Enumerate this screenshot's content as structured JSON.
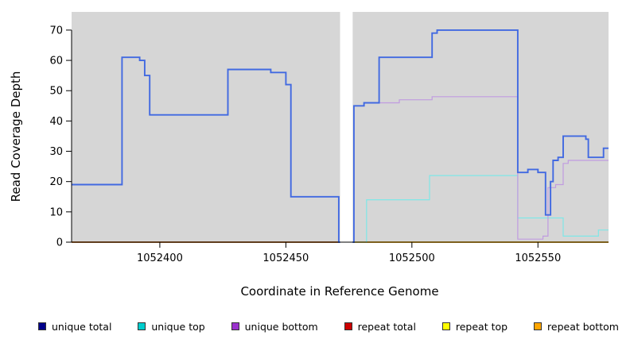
{
  "chart_data": {
    "type": "line",
    "subtype": "step-coverage",
    "title": "",
    "xlabel": "Coordinate in Reference Genome",
    "ylabel": "Read Coverage Depth",
    "x_ticks": [
      1052400,
      1052450,
      1052500,
      1052550
    ],
    "y_ticks": [
      0,
      10,
      20,
      30,
      40,
      50,
      60,
      70
    ],
    "x_range": [
      1052365,
      1052578
    ],
    "y_range": [
      0,
      76
    ],
    "gap_x": [
      1052471.5,
      1052476.5
    ],
    "panel_bg": "#d6d6d6",
    "grid": false,
    "legend_position": "bottom",
    "series": [
      {
        "name": "repeat top",
        "color": "#FFFF00",
        "width": 1.4,
        "points": [
          [
            1052365,
            0
          ],
          [
            1052578,
            0
          ]
        ]
      },
      {
        "name": "repeat total",
        "color": "#8B0000",
        "width": 1.4,
        "points": [
          [
            1052365,
            0
          ],
          [
            1052471,
            0
          ]
        ]
      },
      {
        "name": "repeat bottom",
        "color": "#FF8C00",
        "width": 1.4,
        "points": [
          [
            1052477,
            0
          ],
          [
            1052578,
            0
          ]
        ]
      },
      {
        "name": "unique top",
        "color": "#7FE7E7",
        "width": 1.2,
        "points": [
          [
            1052477,
            0
          ],
          [
            1052482,
            0
          ],
          [
            1052482,
            14
          ],
          [
            1052507,
            14
          ],
          [
            1052507,
            22
          ],
          [
            1052542,
            22
          ],
          [
            1052542,
            8
          ],
          [
            1052560,
            8
          ],
          [
            1052560,
            2
          ],
          [
            1052574,
            2
          ],
          [
            1052574,
            4
          ],
          [
            1052578,
            4
          ]
        ]
      },
      {
        "name": "unique bottom",
        "color": "#C09BE0",
        "width": 1.2,
        "points": [
          [
            1052477,
            0
          ],
          [
            1052477,
            45
          ],
          [
            1052481,
            45
          ],
          [
            1052481,
            46
          ],
          [
            1052495,
            46
          ],
          [
            1052495,
            47
          ],
          [
            1052508,
            47
          ],
          [
            1052508,
            48
          ],
          [
            1052542,
            48
          ],
          [
            1052542,
            1
          ],
          [
            1052552,
            1
          ],
          [
            1052552,
            2
          ],
          [
            1052554,
            2
          ],
          [
            1052554,
            18
          ],
          [
            1052557,
            18
          ],
          [
            1052557,
            19
          ],
          [
            1052560,
            19
          ],
          [
            1052560,
            26
          ],
          [
            1052562,
            26
          ],
          [
            1052562,
            27
          ],
          [
            1052578,
            27
          ]
        ]
      },
      {
        "name": "unique total",
        "color": "#4169E1",
        "width": 1.9,
        "points": [
          [
            1052365,
            19
          ],
          [
            1052385,
            19
          ],
          [
            1052385,
            61
          ],
          [
            1052392,
            61
          ],
          [
            1052392,
            60
          ],
          [
            1052394,
            60
          ],
          [
            1052394,
            55
          ],
          [
            1052396,
            55
          ],
          [
            1052396,
            42
          ],
          [
            1052427,
            42
          ],
          [
            1052427,
            57
          ],
          [
            1052444,
            57
          ],
          [
            1052444,
            56
          ],
          [
            1052450,
            56
          ],
          [
            1052450,
            52
          ],
          [
            1052452,
            52
          ],
          [
            1052452,
            15
          ],
          [
            1052471,
            15
          ],
          [
            1052471,
            0
          ],
          [
            1052477,
            0
          ],
          [
            1052477,
            45
          ],
          [
            1052481,
            45
          ],
          [
            1052481,
            46
          ],
          [
            1052487,
            46
          ],
          [
            1052487,
            61
          ],
          [
            1052508,
            61
          ],
          [
            1052508,
            69
          ],
          [
            1052510,
            69
          ],
          [
            1052510,
            70
          ],
          [
            1052542,
            70
          ],
          [
            1052542,
            23
          ],
          [
            1052546,
            23
          ],
          [
            1052546,
            24
          ],
          [
            1052550,
            24
          ],
          [
            1052550,
            23
          ],
          [
            1052553,
            23
          ],
          [
            1052553,
            9
          ],
          [
            1052555,
            9
          ],
          [
            1052555,
            20
          ],
          [
            1052556,
            20
          ],
          [
            1052556,
            27
          ],
          [
            1052558,
            27
          ],
          [
            1052558,
            28
          ],
          [
            1052560,
            28
          ],
          [
            1052560,
            35
          ],
          [
            1052569,
            35
          ],
          [
            1052569,
            34
          ],
          [
            1052570,
            34
          ],
          [
            1052570,
            28
          ],
          [
            1052576,
            28
          ],
          [
            1052576,
            31
          ],
          [
            1052578,
            31
          ]
        ]
      }
    ]
  },
  "legend": {
    "items": [
      {
        "label": "unique total",
        "color": "#00008B"
      },
      {
        "label": "unique top",
        "color": "#00CDCD"
      },
      {
        "label": "unique bottom",
        "color": "#9A32CD"
      },
      {
        "label": "repeat total",
        "color": "#CD0000"
      },
      {
        "label": "repeat top",
        "color": "#FFFF00"
      },
      {
        "label": "repeat bottom",
        "color": "#FFA500"
      }
    ]
  }
}
